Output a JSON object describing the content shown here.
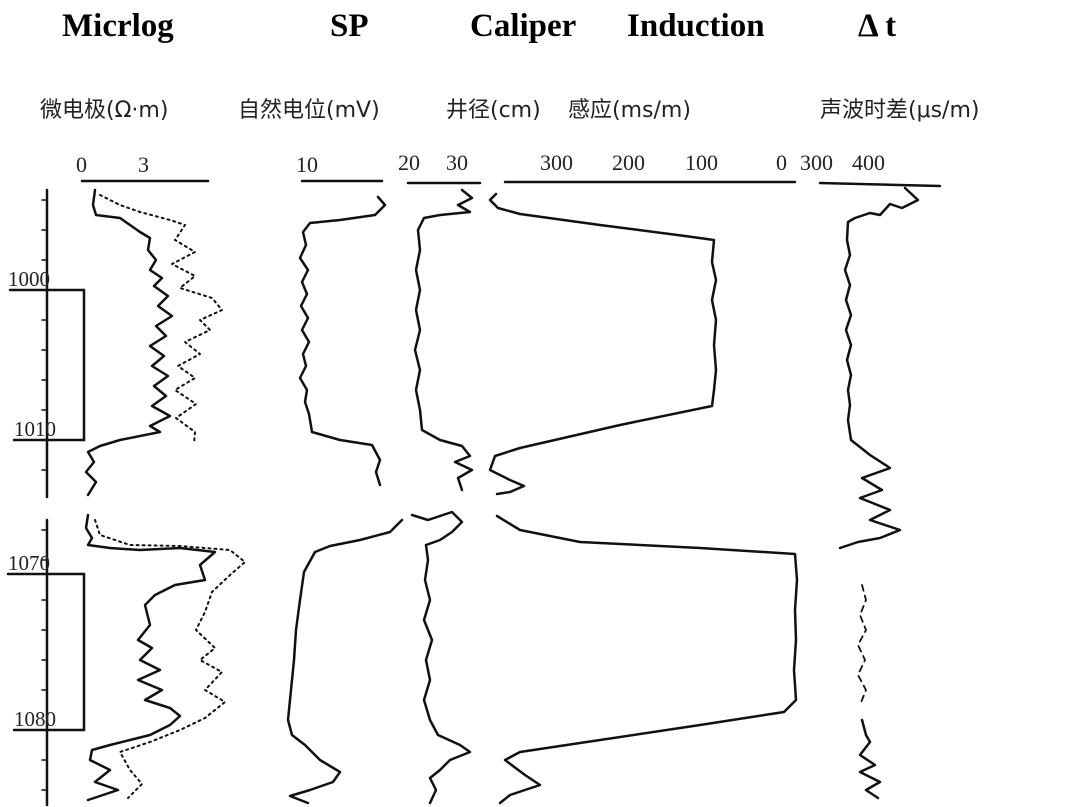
{
  "titles": {
    "micro": "Micrlog",
    "sp": "SP",
    "cal": "Caliper",
    "ind": "Induction",
    "dt": "Δ t"
  },
  "units": {
    "micro": "微电极(Ω·m)",
    "sp": "自然电位(mV)",
    "cal": "井径(cm)",
    "ind": "感应(ms/m)",
    "dt": "声波时差(μs/m)"
  },
  "scales": {
    "micro": [
      "0",
      "3"
    ],
    "sp": [
      "10"
    ],
    "cal": [
      "20",
      "30"
    ],
    "ind": [
      "300",
      "200",
      "100",
      "0"
    ],
    "dt": [
      "300",
      "400"
    ]
  },
  "depths": [
    "1000",
    "1010",
    "1070",
    "1080"
  ],
  "colors": {
    "ink": "#111111",
    "paper": "#ffffff"
  }
}
